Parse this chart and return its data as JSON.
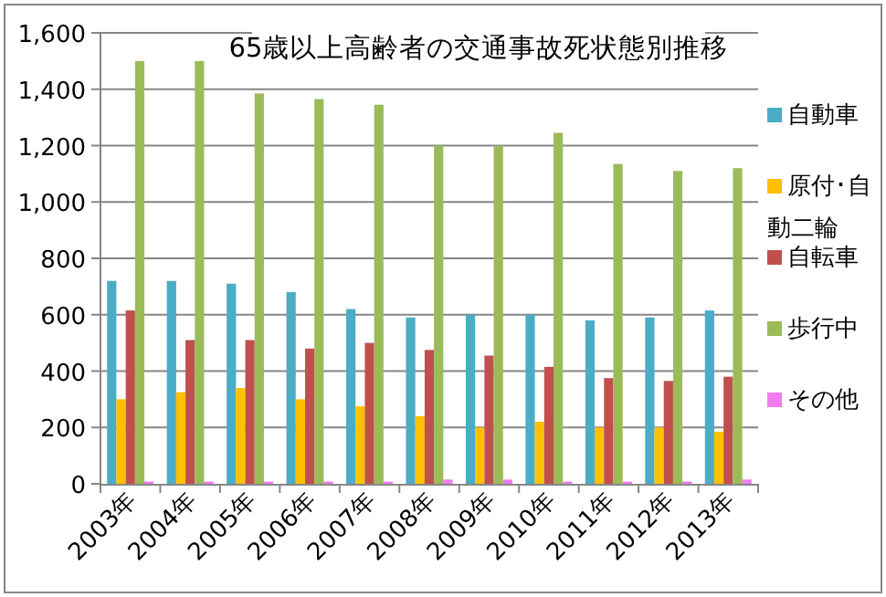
{
  "chart_data": {
    "type": "bar",
    "title": "65歳以上高齢者の交通事故死状態別推移",
    "categories": [
      "2003年",
      "2004年",
      "2005年",
      "2006年",
      "2007年",
      "2008年",
      "2009年",
      "2010年",
      "2011年",
      "2012年",
      "2013年"
    ],
    "series": [
      {
        "name": "自動車",
        "color": "#4bacc6",
        "values": [
          720,
          720,
          710,
          680,
          620,
          590,
          600,
          600,
          580,
          590,
          615
        ]
      },
      {
        "name": "原付･自動二輪",
        "color": "#ffc000",
        "values": [
          300,
          325,
          340,
          300,
          275,
          240,
          200,
          220,
          200,
          200,
          185
        ]
      },
      {
        "name": "自転車",
        "color": "#c0504d",
        "values": [
          615,
          510,
          510,
          480,
          500,
          475,
          455,
          415,
          375,
          365,
          380
        ]
      },
      {
        "name": "歩行中",
        "color": "#9bbb59",
        "values": [
          1500,
          1500,
          1385,
          1365,
          1345,
          1200,
          1200,
          1245,
          1135,
          1110,
          1120
        ]
      },
      {
        "name": "その他",
        "color": "#f07cf0",
        "values": [
          8,
          8,
          8,
          8,
          8,
          15,
          15,
          8,
          8,
          8,
          15
        ]
      }
    ],
    "ylim": [
      0,
      1600
    ],
    "yticks": [
      {
        "value": 0,
        "label": "0"
      },
      {
        "value": 200,
        "label": "200"
      },
      {
        "value": 400,
        "label": "400"
      },
      {
        "value": 600,
        "label": "600"
      },
      {
        "value": 800,
        "label": "800"
      },
      {
        "value": 1000,
        "label": "1,000"
      },
      {
        "value": 1200,
        "label": "1,200"
      },
      {
        "value": 1400,
        "label": "1,400"
      },
      {
        "value": 1600,
        "label": "1,600"
      }
    ],
    "grid": "y",
    "legend": "right"
  }
}
